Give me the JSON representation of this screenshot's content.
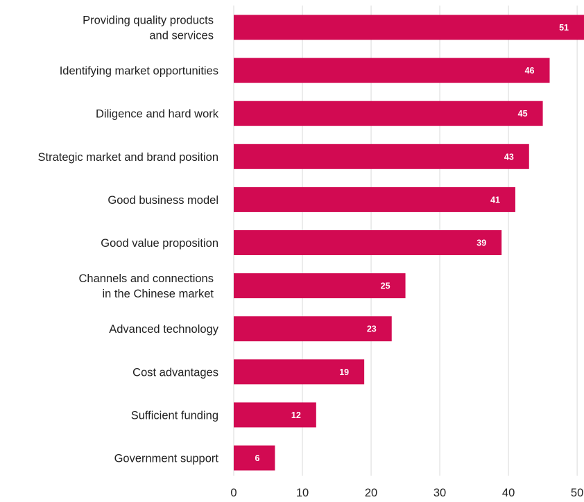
{
  "chart_data": {
    "type": "bar",
    "orientation": "horizontal",
    "categories": [
      [
        "Providing quality products",
        "and services"
      ],
      [
        "Identifying market opportunities"
      ],
      [
        "Diligence and hard work"
      ],
      [
        "Strategic market and brand position"
      ],
      [
        "Good business model"
      ],
      [
        "Good value proposition"
      ],
      [
        "Channels and connections",
        "in the Chinese market"
      ],
      [
        "Advanced technology"
      ],
      [
        "Cost advantages"
      ],
      [
        "Sufficient funding"
      ],
      [
        "Government support"
      ]
    ],
    "values": [
      51,
      46,
      45,
      43,
      41,
      39,
      25,
      23,
      19,
      12,
      6
    ],
    "xlim": [
      0,
      51
    ],
    "xticks": [
      0,
      10,
      20,
      30,
      40,
      50
    ],
    "grid": true,
    "bar_color": "#d20a52",
    "value_label_color": "#ffffff",
    "title": "",
    "xlabel": "",
    "ylabel": ""
  }
}
